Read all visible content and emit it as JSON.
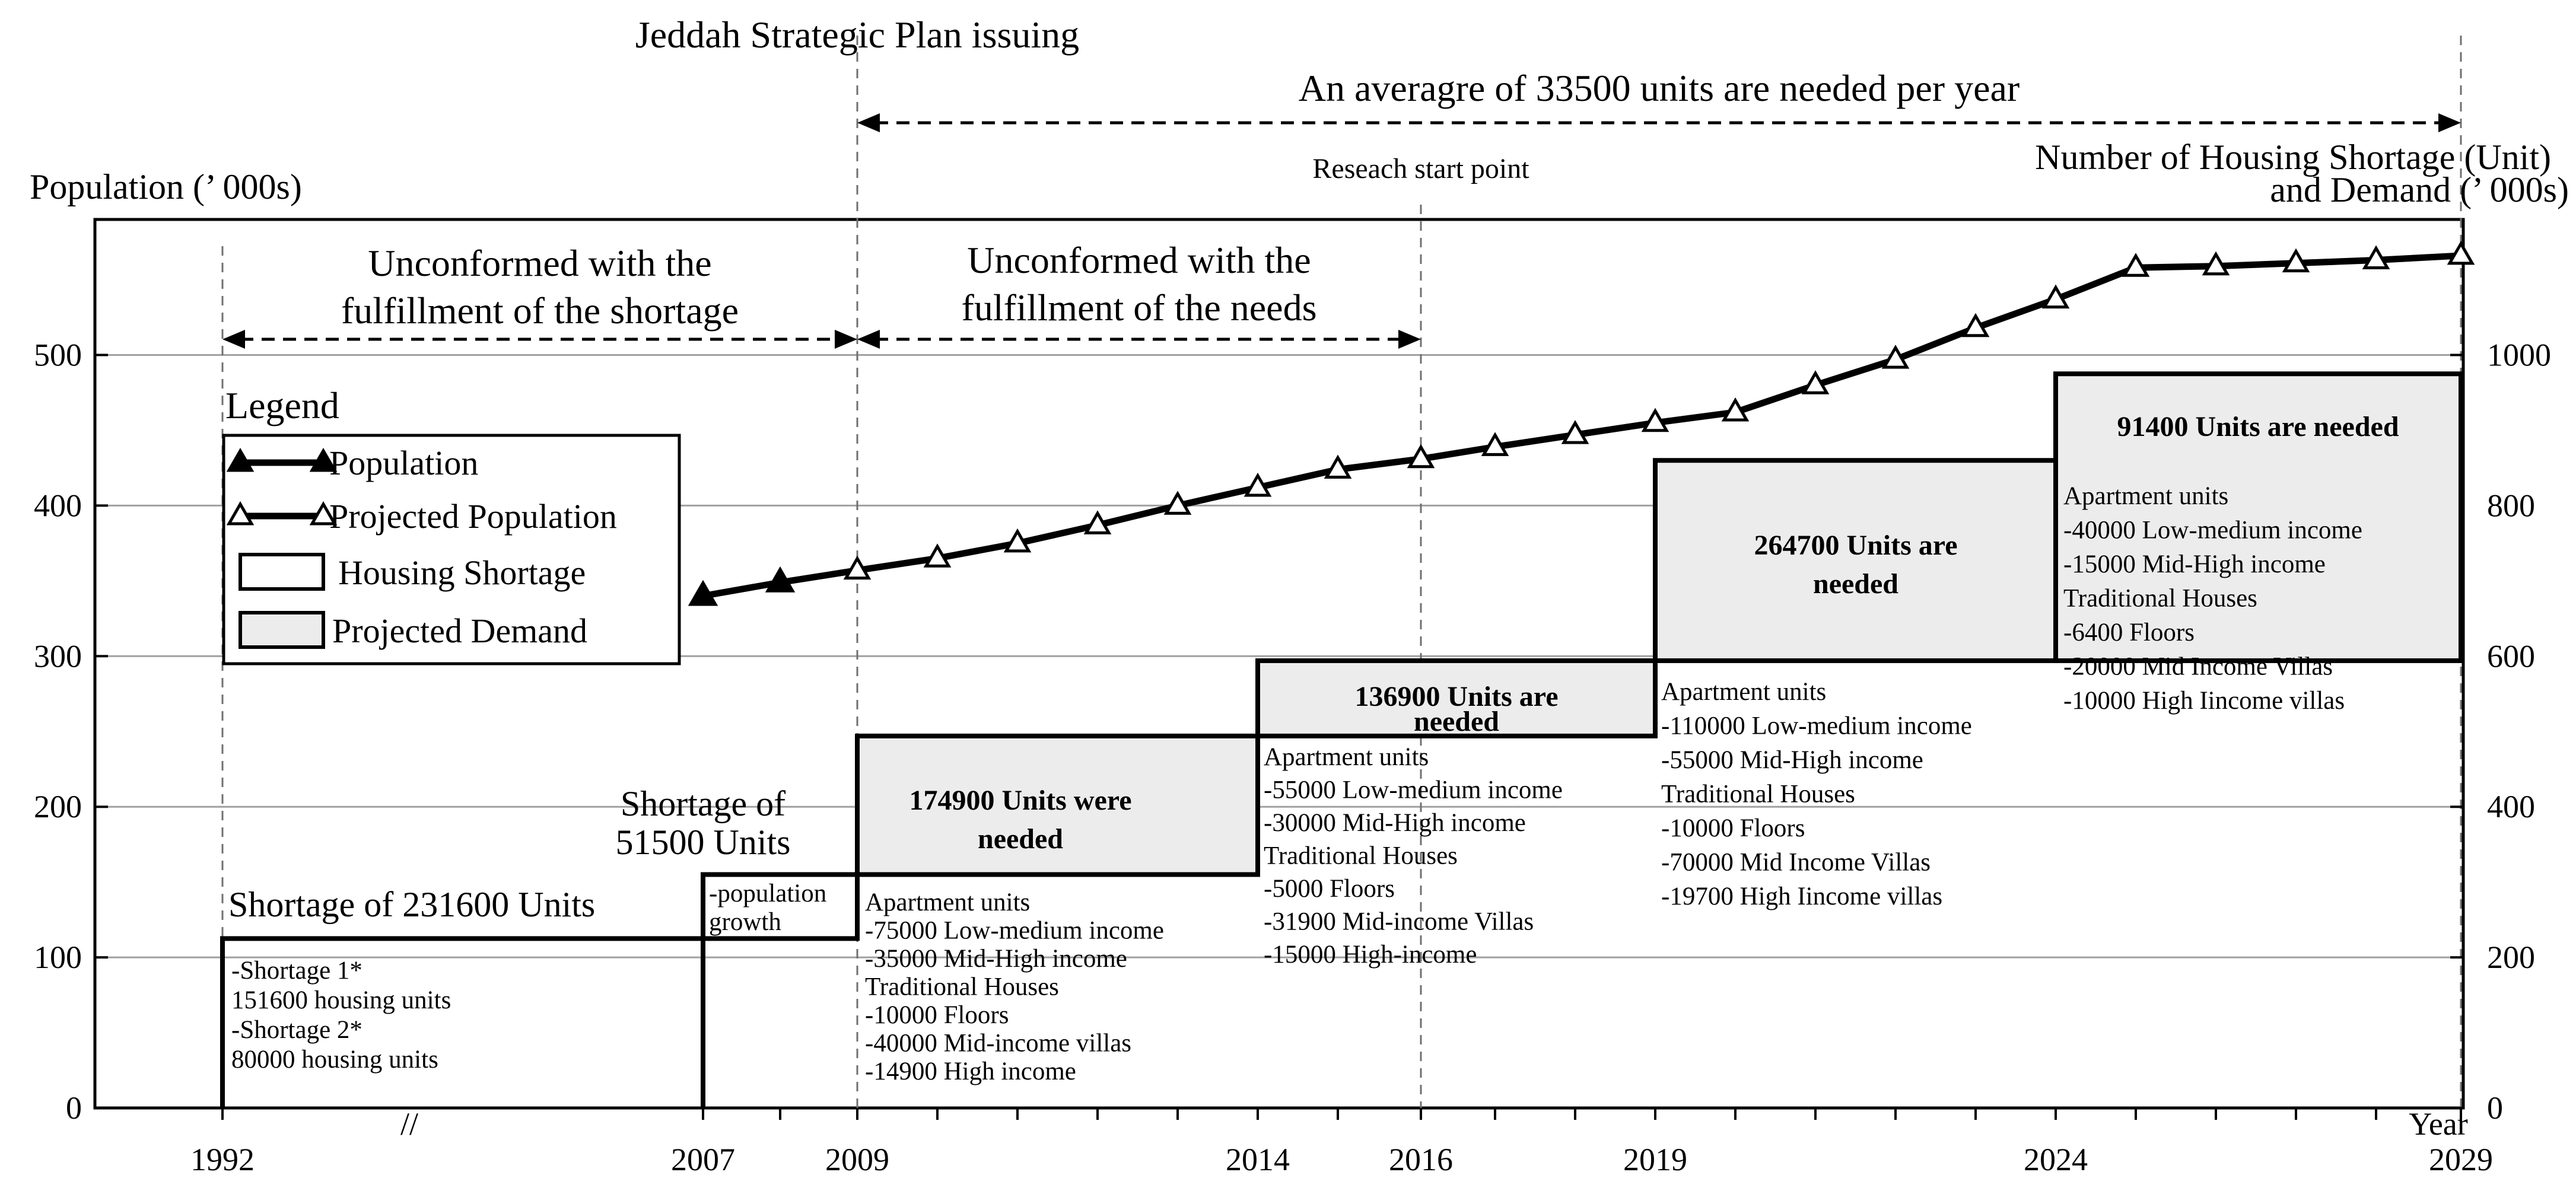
{
  "chart_data": {
    "type": "line",
    "title": "Jeddah Strategic Plan issuing",
    "y_left_label": "Population (’ 000s)",
    "y_right_label": [
      "Number of Housing Shortage (Unit)",
      "and Demand (’ 000s)"
    ],
    "x_label": "Year",
    "x_range": [
      1990,
      2029
    ],
    "y_left_range": [
      0,
      590
    ],
    "y_right_range": [
      0,
      1180
    ],
    "y_left_ticks": [
      0,
      100,
      200,
      300,
      400,
      500
    ],
    "y_right_ticks": [
      0,
      200,
      400,
      600,
      800,
      1000
    ],
    "x_tick_labels": [
      "1992",
      "2007",
      "2009",
      "2014",
      "2016",
      "2019",
      "2024",
      "2029"
    ],
    "x_break_symbol": "//",
    "series": [
      {
        "name": "Population",
        "marker": "filled-triangle",
        "axis": "left",
        "points": [
          [
            2007,
            340
          ],
          [
            2008,
            349
          ]
        ]
      },
      {
        "name": "Projected Population",
        "marker": "open-triangle",
        "axis": "left",
        "points": [
          [
            2008,
            349
          ],
          [
            2009,
            357
          ],
          [
            2010,
            365
          ],
          [
            2011,
            375
          ],
          [
            2012,
            387
          ],
          [
            2013,
            400
          ],
          [
            2014,
            412
          ],
          [
            2015,
            424
          ],
          [
            2016,
            431
          ],
          [
            2017,
            439
          ],
          [
            2018,
            447
          ],
          [
            2019,
            455
          ],
          [
            2020,
            462
          ],
          [
            2021,
            480
          ],
          [
            2022,
            497
          ],
          [
            2023,
            518
          ],
          [
            2024,
            537
          ],
          [
            2025,
            558
          ],
          [
            2026,
            559
          ],
          [
            2027,
            561
          ],
          [
            2028,
            563
          ],
          [
            2029,
            566
          ]
        ]
      }
    ],
    "vertical_markers": [
      {
        "x": 1992,
        "label": ""
      },
      {
        "x": 2009,
        "label": ""
      },
      {
        "x": 2016,
        "label": "Reseach start point"
      },
      {
        "x": 2029,
        "label": ""
      }
    ],
    "arrows": [
      {
        "from": 2009,
        "to": 2029,
        "y_level": "top",
        "label": "An averagre of 33500 units are needed per year"
      },
      {
        "from": 1992,
        "to": 2009,
        "y_level": 512,
        "label": [
          "Unconformed with the",
          "fulfillment of the shortage"
        ]
      },
      {
        "from": 2009,
        "to": 2016,
        "y_level": 512,
        "label": [
          "Unconformed with the",
          "fulfillment of the needs"
        ]
      }
    ],
    "steps": [
      {
        "type": "shortage",
        "x0": 1992,
        "x1": 2007,
        "y_top": 225,
        "label": "Shortage of 231600 Units",
        "notes": [
          "-Shortage 1*",
          "151600 housing units",
          "-Shortage 2*",
          "80000 housing units"
        ]
      },
      {
        "type": "shortage",
        "x0": 2007,
        "x1": 2009,
        "y_bottom": 225,
        "y_top": 310,
        "label": [
          "Shortage of",
          "51500 Units"
        ],
        "notes": [
          "-population",
          "growth"
        ]
      },
      {
        "type": "demand",
        "x0": 2009,
        "x1": 2014,
        "y_bottom": 310,
        "y_top": 494,
        "label": [
          "174900 Units were",
          "needed"
        ],
        "notes": [
          "Apartment units",
          "-75000 Low-medium income",
          "-35000 Mid-High income",
          "Traditional Houses",
          "-10000 Floors",
          "-40000 Mid-income villas",
          "-14900 High income"
        ]
      },
      {
        "type": "demand",
        "x0": 2014,
        "x1": 2019,
        "y_bottom": 494,
        "y_top": 594,
        "label": [
          "136900 Units are",
          "needed"
        ],
        "notes": [
          "Apartment units",
          "-55000 Low-medium income",
          "-30000 Mid-High income",
          "Traditional Houses",
          "-5000 Floors",
          "-31900 Mid-income Villas",
          "-15000 High-income"
        ]
      },
      {
        "type": "demand",
        "x0": 2019,
        "x1": 2024,
        "y_bottom": 594,
        "y_top": 860,
        "label": [
          "264700 Units are",
          "needed"
        ],
        "notes": [
          "Apartment units",
          "-110000 Low-medium income",
          "-55000 Mid-High income",
          "Traditional Houses",
          "-10000 Floors",
          "-70000 Mid Income Villas",
          "-19700 High Iincome villas"
        ]
      },
      {
        "type": "demand",
        "x0": 2024,
        "x1": 2029,
        "y_bottom": 594,
        "y_top": 975,
        "label": "91400 Units are needed",
        "notes": [
          "Apartment units",
          "-40000 Low-medium income",
          "-15000 Mid-High income",
          "Traditional Houses",
          "-6400 Floors",
          "-20000 Mid Income Villas",
          "-10000 High Iincome villas"
        ]
      }
    ],
    "legend": {
      "title": "Legend",
      "placement": "left",
      "items": [
        {
          "label": "Population",
          "symbol": "filled-triangle-line"
        },
        {
          "label": "Projected Population",
          "symbol": "open-triangle-line"
        },
        {
          "label": "Housing Shortage",
          "symbol": "white-box"
        },
        {
          "label": "Projected Demand",
          "symbol": "grey-box"
        }
      ]
    },
    "colors": {
      "line": "#000000",
      "demand_fill": "#ececec",
      "shortage_fill": "#ffffff",
      "grid": "#a0a0a0",
      "guide": "#707070"
    }
  }
}
